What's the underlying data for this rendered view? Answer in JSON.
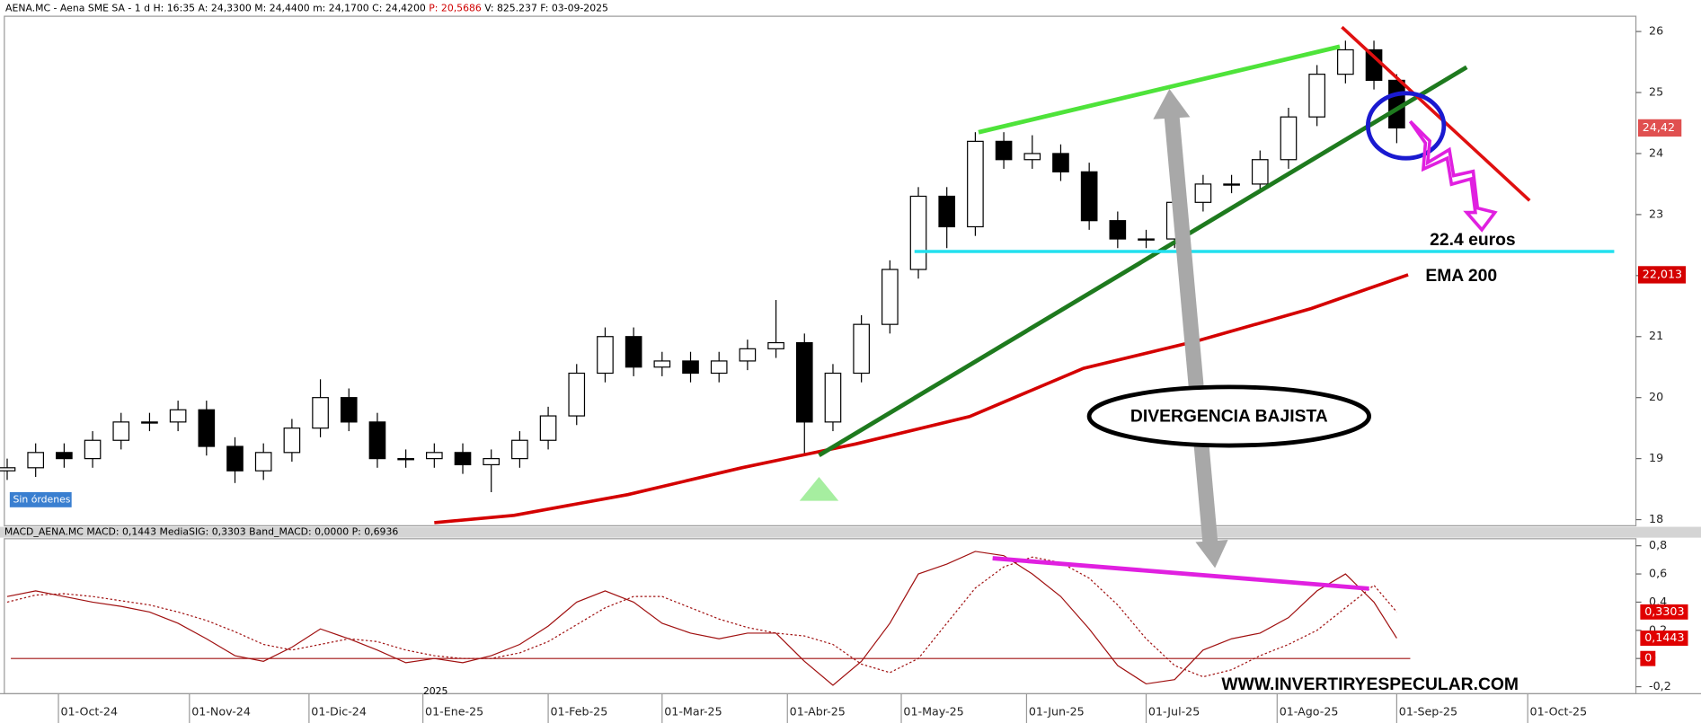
{
  "header": {
    "symbol": "AENA.MC - Aena SME SA -  1 d",
    "time": "H: 16:35",
    "open": "A: 24,3300",
    "high": "M: 24,4400",
    "low": "m: 24,1700",
    "close": "C: 24,4200",
    "p": "P: 20,5686",
    "volume": "V: 825.237",
    "date": "F: 03-09-2025"
  },
  "chart_data": [
    {
      "type": "candlestick",
      "x": [
        -9,
        -4,
        1,
        6,
        11,
        16,
        21,
        26,
        31,
        36,
        41,
        46,
        51,
        56,
        61,
        66,
        71,
        76,
        81,
        86,
        91,
        96,
        101,
        106,
        111,
        116,
        121,
        126,
        131,
        136,
        141,
        146,
        151,
        156,
        161,
        166,
        171,
        176,
        181,
        186,
        191,
        196,
        201,
        206,
        211,
        216,
        221,
        226,
        231,
        235
      ],
      "open": [
        18.8,
        18.85,
        19.1,
        19.0,
        19.3,
        19.6,
        19.6,
        19.8,
        19.2,
        18.8,
        19.1,
        19.5,
        20.0,
        19.6,
        19.0,
        19.0,
        19.1,
        18.9,
        19.0,
        19.3,
        19.7,
        20.4,
        21.0,
        20.5,
        20.6,
        20.4,
        20.6,
        20.8,
        20.9,
        19.6,
        20.4,
        21.2,
        22.1,
        23.3,
        22.8,
        24.2,
        23.9,
        24.0,
        23.7,
        22.9,
        22.6,
        22.6,
        23.2,
        23.5,
        23.5,
        23.9,
        24.6,
        25.3,
        25.7,
        25.2
      ],
      "high": [
        19.0,
        19.25,
        19.25,
        19.45,
        19.75,
        19.75,
        19.95,
        19.95,
        19.35,
        19.25,
        19.65,
        20.3,
        20.15,
        19.75,
        19.15,
        19.25,
        19.25,
        19.15,
        19.45,
        19.85,
        20.55,
        21.15,
        21.15,
        20.75,
        20.75,
        20.75,
        20.95,
        21.6,
        21.05,
        20.55,
        21.35,
        22.25,
        23.45,
        23.45,
        24.35,
        24.35,
        24.3,
        24.15,
        23.85,
        23.05,
        22.75,
        23.35,
        23.65,
        23.65,
        24.05,
        24.75,
        25.45,
        25.85,
        25.85,
        25.3
      ],
      "low": [
        18.65,
        18.7,
        18.85,
        18.85,
        19.15,
        19.45,
        19.45,
        19.05,
        18.6,
        18.65,
        18.95,
        19.35,
        19.45,
        18.85,
        18.85,
        18.85,
        18.75,
        18.45,
        18.85,
        19.15,
        19.55,
        20.25,
        20.35,
        20.35,
        20.25,
        20.25,
        20.45,
        20.65,
        19.05,
        19.45,
        20.25,
        21.05,
        21.95,
        22.45,
        22.65,
        23.75,
        23.75,
        23.55,
        22.75,
        22.45,
        22.45,
        22.45,
        23.05,
        23.35,
        23.35,
        23.75,
        24.45,
        25.15,
        25.05,
        24.17
      ],
      "close": [
        18.85,
        19.1,
        19.0,
        19.3,
        19.6,
        19.6,
        19.8,
        19.2,
        18.8,
        19.1,
        19.5,
        20.0,
        19.6,
        19.0,
        19.0,
        19.1,
        18.9,
        19.0,
        19.3,
        19.7,
        20.4,
        21.0,
        20.5,
        20.6,
        20.4,
        20.6,
        20.8,
        20.9,
        19.6,
        20.4,
        21.2,
        22.1,
        23.3,
        22.8,
        24.2,
        23.9,
        24.0,
        23.7,
        22.9,
        22.6,
        22.6,
        23.2,
        23.5,
        23.5,
        23.9,
        24.6,
        25.3,
        25.7,
        25.2,
        24.42
      ],
      "last_label": "24,42",
      "ema": {
        "name": "EMA 200",
        "color": "#d40000",
        "x": [
          66,
          80,
          100,
          120,
          140,
          160,
          180,
          200,
          220,
          237
        ],
        "values": [
          17.95,
          18.07,
          18.41,
          18.85,
          19.24,
          19.69,
          20.48,
          20.93,
          21.46,
          22.013
        ],
        "last_label": "22,013"
      },
      "xlim": [
        -9.5,
        277
      ],
      "xticks": [
        {
          "value": 0,
          "label": "01-Oct-24"
        },
        {
          "value": 23,
          "label": "01-Nov-24"
        },
        {
          "value": 44,
          "label": "01-Dic-24"
        },
        {
          "value": 64,
          "label": "01-Ene-25"
        },
        {
          "value": 86,
          "label": "01-Feb-25"
        },
        {
          "value": 106,
          "label": "01-Mar-25"
        },
        {
          "value": 128,
          "label": "01-Abr-25"
        },
        {
          "value": 148,
          "label": "01-May-25"
        },
        {
          "value": 170,
          "label": "01-Jun-25"
        },
        {
          "value": 191,
          "label": "01-Jul-25"
        },
        {
          "value": 214,
          "label": "01-Ago-25"
        },
        {
          "value": 235,
          "label": "01-Sep-25"
        },
        {
          "value": 258,
          "label": "01-Oct-25"
        }
      ],
      "year_label": "2025",
      "ylim": [
        17.9,
        26.25
      ],
      "yticks": [
        18,
        19,
        20,
        21,
        22,
        23,
        24,
        25,
        26
      ],
      "orders": "Sin órdenes",
      "target": "22.4 euros",
      "divergence": "DIVERGENCIA BAJISTA",
      "website": "WWW.INVERTIRYESPECULAR.COM"
    },
    {
      "type": "line",
      "title": "MACD_AENA.MC MACD: 0,1443 MediaSIG: 0,3303 Band_MACD: 0,0000 P: 0,6936",
      "x": [
        -9,
        -4,
        1,
        6,
        11,
        16,
        21,
        26,
        31,
        36,
        41,
        46,
        51,
        56,
        61,
        66,
        71,
        76,
        81,
        86,
        91,
        96,
        101,
        106,
        111,
        116,
        121,
        126,
        131,
        136,
        141,
        146,
        151,
        156,
        161,
        166,
        171,
        176,
        181,
        186,
        191,
        196,
        201,
        206,
        211,
        216,
        221,
        226,
        231,
        235
      ],
      "series": [
        {
          "color": "#a01010",
          "dash": false,
          "values": [
            0.44,
            0.48,
            0.44,
            0.4,
            0.37,
            0.33,
            0.25,
            0.14,
            0.02,
            -0.02,
            0.08,
            0.21,
            0.14,
            0.06,
            -0.03,
            0,
            -0.03,
            0.02,
            0.1,
            0.23,
            0.4,
            0.48,
            0.4,
            0.25,
            0.18,
            0.14,
            0.18,
            0.18,
            -0.02,
            -0.19,
            -0.02,
            0.25,
            0.6,
            0.67,
            0.76,
            0.73,
            0.6,
            0.44,
            0.21,
            -0.05,
            -0.18,
            -0.15,
            0.06,
            0.14,
            0.18,
            0.29,
            0.48,
            0.6,
            0.4,
            0.1443
          ],
          "last_label": "0,1443"
        },
        {
          "color": "#a01010",
          "dash": true,
          "values": [
            0.4,
            0.45,
            0.46,
            0.44,
            0.41,
            0.38,
            0.33,
            0.27,
            0.19,
            0.1,
            0.06,
            0.1,
            0.14,
            0.12,
            0.06,
            0.02,
            0,
            0,
            0.04,
            0.12,
            0.24,
            0.36,
            0.44,
            0.44,
            0.36,
            0.28,
            0.22,
            0.18,
            0.16,
            0.1,
            -0.04,
            -0.1,
            0,
            0.25,
            0.5,
            0.65,
            0.72,
            0.68,
            0.57,
            0.38,
            0.14,
            -0.05,
            -0.13,
            -0.08,
            0.02,
            0.1,
            0.2,
            0.36,
            0.52,
            0.3303
          ],
          "last_label": "0,3303"
        }
      ],
      "band": {
        "value": 0,
        "label": "0",
        "color": "#a01010"
      },
      "ylim": [
        -0.25,
        0.85
      ],
      "yticks": [
        {
          "value": -0.2,
          "label": "-0,2"
        },
        {
          "value": 0,
          "label": "0"
        },
        {
          "value": 0.2,
          "label": "0,2"
        },
        {
          "value": 0.4,
          "label": "0,4"
        },
        {
          "value": 0.6,
          "label": "0,6"
        },
        {
          "value": 0.8,
          "label": "0,8"
        }
      ]
    }
  ]
}
